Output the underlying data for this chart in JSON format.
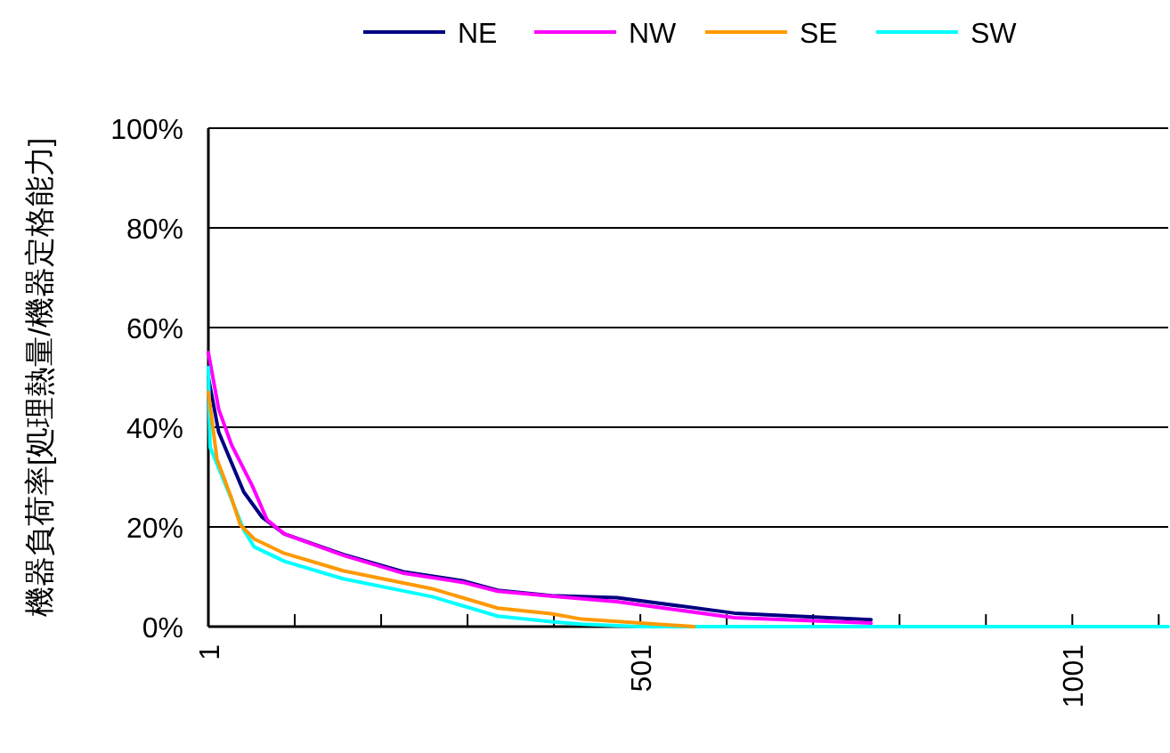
{
  "chart_data": {
    "type": "line",
    "ylabel": "機器負荷率[処理熱量/機器定格能力]",
    "xlim": [
      1,
      1112
    ],
    "xticks": [
      {
        "value": 1,
        "label": "1"
      },
      {
        "value": 101,
        "label": null
      },
      {
        "value": 201,
        "label": null
      },
      {
        "value": 301,
        "label": null
      },
      {
        "value": 401,
        "label": null
      },
      {
        "value": 501,
        "label": "501"
      },
      {
        "value": 601,
        "label": null
      },
      {
        "value": 701,
        "label": null
      },
      {
        "value": 801,
        "label": null
      },
      {
        "value": 901,
        "label": null
      },
      {
        "value": 1001,
        "label": "1001"
      },
      {
        "value": 1101,
        "label": null
      }
    ],
    "ylim": [
      0,
      100
    ],
    "yticks": [
      {
        "value": 0,
        "label": "0%"
      },
      {
        "value": 20,
        "label": "20%"
      },
      {
        "value": 40,
        "label": "40%"
      },
      {
        "value": 60,
        "label": "60%"
      },
      {
        "value": 80,
        "label": "80%"
      },
      {
        "value": 100,
        "label": "100%"
      }
    ],
    "grid": "y",
    "legend": "top",
    "marker": "none",
    "line_style": "solid",
    "series": [
      {
        "name": "NE",
        "color": "#000080",
        "x": [
          1,
          13,
          42,
          63,
          89,
          157,
          227,
          295,
          336,
          398,
          474,
          610,
          768
        ],
        "values": [
          50,
          39,
          27,
          22,
          18.6,
          14.5,
          11,
          9.2,
          7.3,
          6.2,
          5.8,
          2.7,
          1.4
        ]
      },
      {
        "name": "NW",
        "color": "#ff00ff",
        "x": [
          1,
          13,
          28,
          52,
          69,
          89,
          157,
          227,
          295,
          336,
          398,
          474,
          610,
          768
        ],
        "values": [
          55,
          43.6,
          36.4,
          28.2,
          21.4,
          18.6,
          14.3,
          10.7,
          8.9,
          7.1,
          6.1,
          5,
          1.8,
          0.7
        ]
      },
      {
        "name": "SE",
        "color": "#ff9900",
        "x": [
          1,
          11,
          28,
          38,
          54,
          89,
          157,
          260,
          336,
          398,
          433,
          563
        ],
        "values": [
          47,
          33.6,
          25.7,
          20.4,
          17.6,
          14.7,
          11.2,
          7.6,
          3.7,
          2.6,
          1.5,
          0
        ]
      },
      {
        "name": "SW",
        "color": "#00ffff",
        "x": [
          1,
          3,
          22,
          42,
          54,
          89,
          157,
          260,
          336,
          398,
          433,
          500,
          1112
        ],
        "values": [
          52,
          36,
          28,
          19.4,
          16,
          13.1,
          9.6,
          6,
          2.1,
          1,
          0.5,
          0,
          0
        ]
      }
    ]
  }
}
